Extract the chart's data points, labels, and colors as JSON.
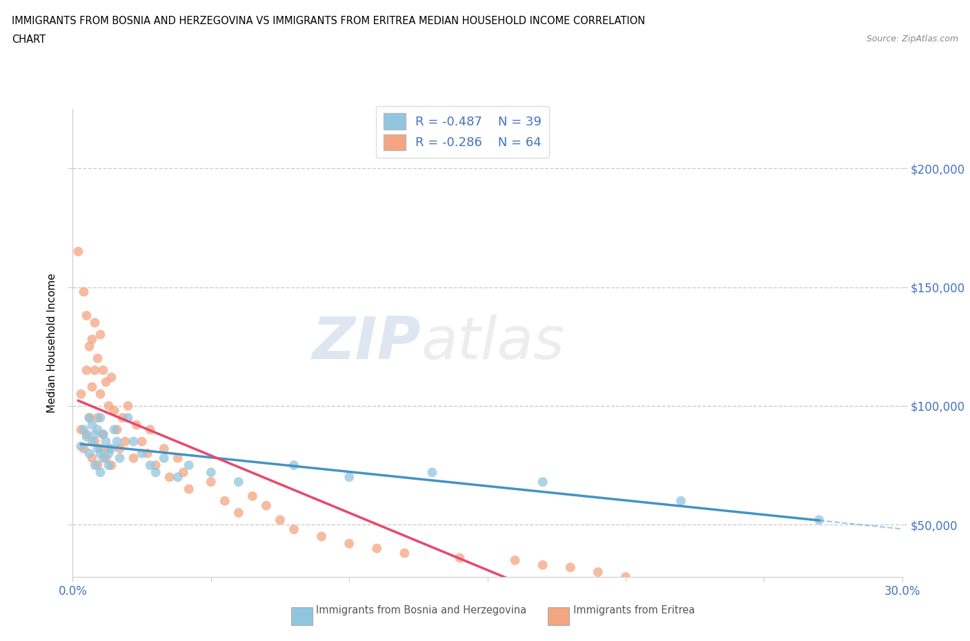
{
  "title_line1": "IMMIGRANTS FROM BOSNIA AND HERZEGOVINA VS IMMIGRANTS FROM ERITREA MEDIAN HOUSEHOLD INCOME CORRELATION",
  "title_line2": "CHART",
  "source_text": "Source: ZipAtlas.com",
  "ylabel": "Median Household Income",
  "xlim": [
    0.0,
    0.3
  ],
  "ylim": [
    28000,
    225000
  ],
  "yticks": [
    50000,
    100000,
    150000,
    200000
  ],
  "ytick_labels": [
    "$50,000",
    "$100,000",
    "$150,000",
    "$200,000"
  ],
  "xticks": [
    0.0,
    0.05,
    0.1,
    0.15,
    0.2,
    0.25,
    0.3
  ],
  "xtick_labels": [
    "0.0%",
    "",
    "",
    "",
    "",
    "",
    "30.0%"
  ],
  "R_bosnia": -0.487,
  "N_bosnia": 39,
  "R_eritrea": -0.286,
  "N_eritrea": 64,
  "color_bosnia": "#92c5de",
  "color_eritrea": "#f4a582",
  "trendline_color_bosnia": "#4393c3",
  "trendline_color_eritrea": "#e8476a",
  "watermark_zip": "ZIP",
  "watermark_atlas": "atlas",
  "legend_label_bosnia": "Immigrants from Bosnia and Herzegovina",
  "legend_label_eritrea": "Immigrants from Eritrea",
  "blue_text_color": "#4472c4",
  "grid_color": "#cccccc",
  "bosnia_x": [
    0.003,
    0.004,
    0.005,
    0.006,
    0.006,
    0.007,
    0.007,
    0.008,
    0.008,
    0.009,
    0.009,
    0.01,
    0.01,
    0.01,
    0.011,
    0.011,
    0.012,
    0.013,
    0.013,
    0.014,
    0.015,
    0.016,
    0.017,
    0.02,
    0.022,
    0.025,
    0.028,
    0.03,
    0.033,
    0.038,
    0.042,
    0.05,
    0.06,
    0.08,
    0.1,
    0.13,
    0.17,
    0.22,
    0.27
  ],
  "bosnia_y": [
    83000,
    90000,
    87000,
    95000,
    80000,
    92000,
    85000,
    88000,
    75000,
    90000,
    82000,
    95000,
    80000,
    72000,
    88000,
    78000,
    85000,
    80000,
    75000,
    82000,
    90000,
    85000,
    78000,
    95000,
    85000,
    80000,
    75000,
    72000,
    78000,
    70000,
    75000,
    72000,
    68000,
    75000,
    70000,
    72000,
    68000,
    60000,
    52000
  ],
  "eritrea_x": [
    0.002,
    0.003,
    0.003,
    0.004,
    0.004,
    0.005,
    0.005,
    0.005,
    0.006,
    0.006,
    0.007,
    0.007,
    0.007,
    0.008,
    0.008,
    0.008,
    0.009,
    0.009,
    0.009,
    0.01,
    0.01,
    0.01,
    0.011,
    0.011,
    0.012,
    0.012,
    0.013,
    0.013,
    0.014,
    0.014,
    0.015,
    0.016,
    0.017,
    0.018,
    0.019,
    0.02,
    0.022,
    0.023,
    0.025,
    0.027,
    0.028,
    0.03,
    0.033,
    0.035,
    0.038,
    0.04,
    0.042,
    0.05,
    0.055,
    0.06,
    0.065,
    0.07,
    0.075,
    0.08,
    0.09,
    0.1,
    0.11,
    0.12,
    0.14,
    0.16,
    0.17,
    0.18,
    0.19,
    0.2
  ],
  "eritrea_y": [
    165000,
    105000,
    90000,
    148000,
    82000,
    138000,
    115000,
    88000,
    125000,
    95000,
    128000,
    108000,
    78000,
    135000,
    115000,
    85000,
    120000,
    95000,
    75000,
    130000,
    105000,
    82000,
    115000,
    88000,
    110000,
    78000,
    100000,
    82000,
    112000,
    75000,
    98000,
    90000,
    82000,
    95000,
    85000,
    100000,
    78000,
    92000,
    85000,
    80000,
    90000,
    75000,
    82000,
    70000,
    78000,
    72000,
    65000,
    68000,
    60000,
    55000,
    62000,
    58000,
    52000,
    48000,
    45000,
    42000,
    40000,
    38000,
    36000,
    35000,
    33000,
    32000,
    30000,
    28000
  ]
}
